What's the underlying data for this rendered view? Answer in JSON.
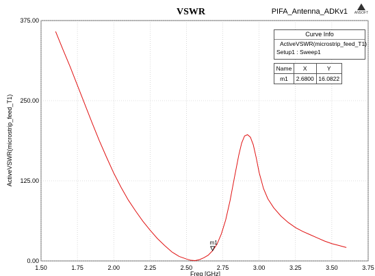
{
  "chart_data": {
    "type": "line",
    "title": "VSWR",
    "project_label": "PIFA_Antenna_ADKv1",
    "xlabel": "Freq [GHz]",
    "ylabel": "ActiveVSWR(microstrip_feed_T1)",
    "xlim": [
      1.5,
      3.75
    ],
    "ylim": [
      0,
      375
    ],
    "xticks": [
      1.5,
      1.75,
      2.0,
      2.25,
      2.5,
      2.75,
      3.0,
      3.25,
      3.5,
      3.75
    ],
    "xtick_labels": [
      "1.50",
      "1.75",
      "2.00",
      "2.25",
      "2.50",
      "2.75",
      "3.00",
      "3.25",
      "3.50",
      "3.75"
    ],
    "yticks": [
      0,
      125,
      250,
      375
    ],
    "ytick_labels": [
      "0.00",
      "125.00",
      "250.00",
      "375.00"
    ],
    "grid": true,
    "series": [
      {
        "name": "ActiveVSWR(microstrip_feed_T1)",
        "color": "#e01010",
        "x": [
          1.6,
          1.65,
          1.7,
          1.75,
          1.8,
          1.85,
          1.9,
          1.95,
          2.0,
          2.05,
          2.1,
          2.15,
          2.2,
          2.25,
          2.3,
          2.35,
          2.4,
          2.45,
          2.5,
          2.53,
          2.56,
          2.59,
          2.62,
          2.65,
          2.68,
          2.71,
          2.74,
          2.77,
          2.8,
          2.83,
          2.86,
          2.88,
          2.9,
          2.92,
          2.94,
          2.96,
          2.98,
          3.0,
          3.03,
          3.06,
          3.1,
          3.15,
          3.2,
          3.25,
          3.3,
          3.35,
          3.4,
          3.45,
          3.5,
          3.55,
          3.6
        ],
        "y": [
          358,
          330,
          303,
          274,
          245,
          216,
          188,
          162,
          137,
          115,
          95,
          78,
          62,
          48,
          35,
          24,
          14,
          7,
          3,
          1,
          0.5,
          2,
          5,
          9,
          16,
          26,
          42,
          64,
          94,
          130,
          165,
          184,
          195,
          197,
          193,
          181,
          161,
          138,
          113,
          97,
          83,
          70,
          60,
          52,
          46,
          41,
          36,
          31,
          27,
          24,
          21
        ]
      }
    ],
    "marker": {
      "name": "m1",
      "x": 2.68,
      "y": 16.0822
    },
    "curve_info": {
      "header": "Curve Info",
      "entry": "ActiveVSWR(microstrip_feed_T1)",
      "setup": "Setup1 : Sweep1"
    },
    "marker_table": {
      "columns": [
        "Name",
        "X",
        "Y"
      ],
      "rows": [
        [
          "m1",
          "2.6800",
          "16.0822"
        ]
      ]
    },
    "logo_text": "ANSOFT"
  }
}
